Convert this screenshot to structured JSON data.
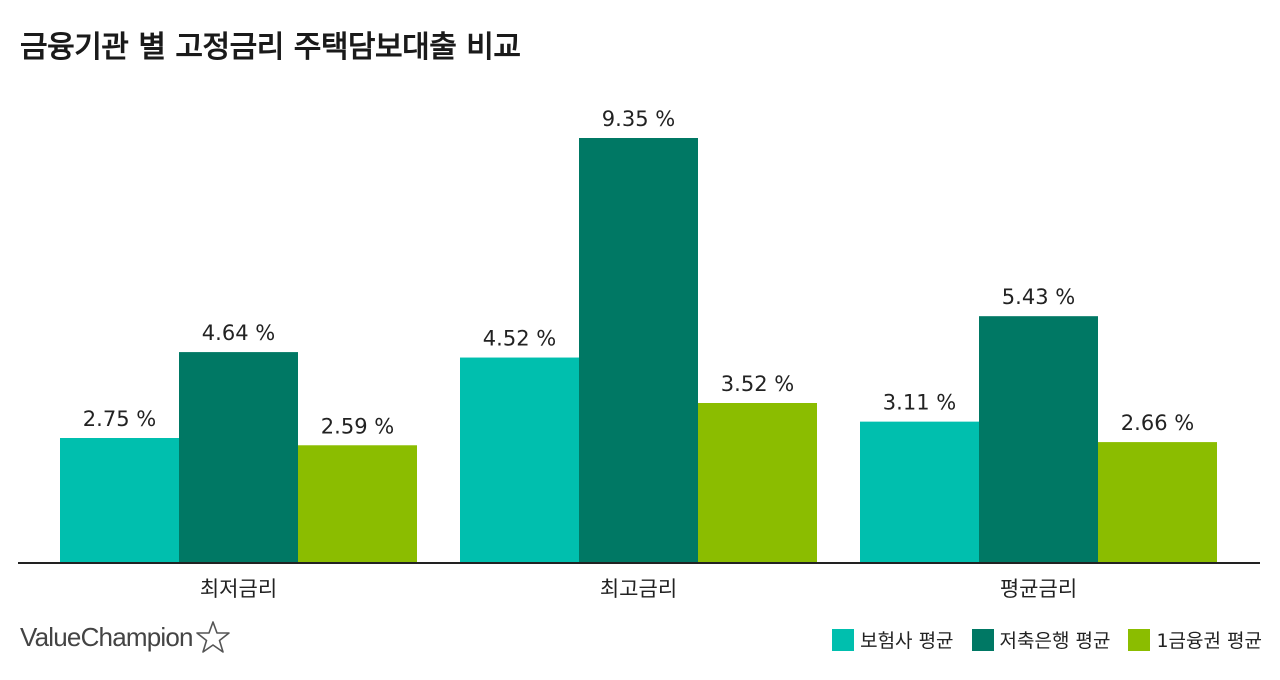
{
  "title": "금융기관 별 고정금리 주택담보대출 비교",
  "brand": {
    "name": "ValueChampion",
    "icon": "star-outline-icon"
  },
  "chart_data": {
    "type": "bar",
    "title": "금융기관 별 고정금리 주택담보대출 비교",
    "xlabel": "",
    "ylabel": "",
    "categories": [
      "최저금리",
      "최고금리",
      "평균금리"
    ],
    "series": [
      {
        "name": "보험사 평균",
        "color": "#00BFAE",
        "values": [
          2.75,
          4.52,
          3.11
        ],
        "labels": [
          "2.75 %",
          "4.52 %",
          "3.11 %"
        ]
      },
      {
        "name": "저축은행 평균",
        "color": "#007864",
        "values": [
          4.64,
          9.35,
          5.43
        ],
        "labels": [
          "4.64 %",
          "9.35 %",
          "5.43 %"
        ]
      },
      {
        "name": "1금융권 평균",
        "color": "#8BBD00",
        "values": [
          2.59,
          3.52,
          2.66
        ],
        "labels": [
          "2.59 %",
          "3.52 %",
          "2.66 %"
        ]
      }
    ],
    "ylim": [
      0,
      9.35
    ],
    "grid": false,
    "legend_position": "bottom-right"
  }
}
